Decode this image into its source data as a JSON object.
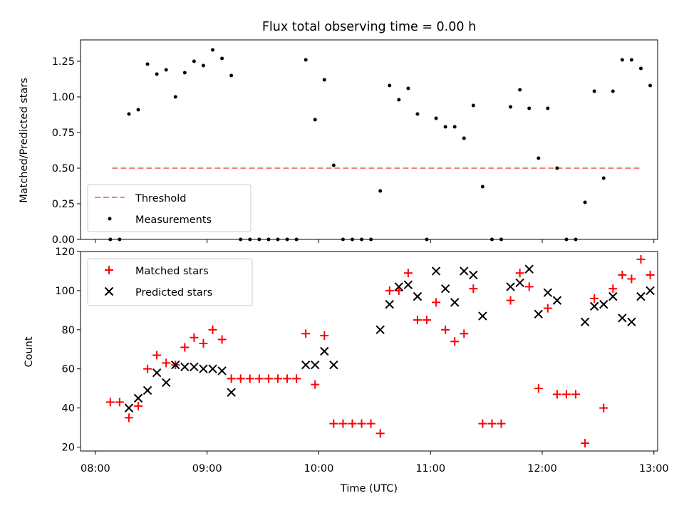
{
  "chart_data": [
    {
      "type": "scatter",
      "title": "Flux total observing time = 0.00 h",
      "ylabel": "Matched/Predicted stars",
      "xlabel": "",
      "ylim": [
        0,
        1.4
      ],
      "xlim": [
        "07:52",
        "13:02"
      ],
      "yticks": [
        "0.00",
        "0.25",
        "0.50",
        "0.75",
        "1.00",
        "1.25"
      ],
      "legend_position": "lower-left",
      "threshold": {
        "name": "Threshold",
        "y": 0.5,
        "x_start": "08:09",
        "x_end": "12:53",
        "color": "#f08080"
      },
      "series": [
        {
          "name": "Measurements",
          "color": "#000000",
          "points": [
            [
              "08:08",
              0.0
            ],
            [
              "08:13",
              0.0
            ],
            [
              "08:18",
              0.88
            ],
            [
              "08:23",
              0.91
            ],
            [
              "08:28",
              1.23
            ],
            [
              "08:33",
              1.16
            ],
            [
              "08:38",
              1.19
            ],
            [
              "08:43",
              1.0
            ],
            [
              "08:48",
              1.17
            ],
            [
              "08:53",
              1.25
            ],
            [
              "08:58",
              1.22
            ],
            [
              "09:03",
              1.33
            ],
            [
              "09:08",
              1.27
            ],
            [
              "09:13",
              1.15
            ],
            [
              "09:18",
              0.0
            ],
            [
              "09:23",
              0.0
            ],
            [
              "09:28",
              0.0
            ],
            [
              "09:33",
              0.0
            ],
            [
              "09:38",
              0.0
            ],
            [
              "09:43",
              0.0
            ],
            [
              "09:48",
              0.0
            ],
            [
              "09:53",
              1.26
            ],
            [
              "09:58",
              0.84
            ],
            [
              "10:03",
              1.12
            ],
            [
              "10:08",
              0.52
            ],
            [
              "10:13",
              0.0
            ],
            [
              "10:18",
              0.0
            ],
            [
              "10:23",
              0.0
            ],
            [
              "10:28",
              0.0
            ],
            [
              "10:33",
              0.34
            ],
            [
              "10:38",
              1.08
            ],
            [
              "10:43",
              0.98
            ],
            [
              "10:48",
              1.06
            ],
            [
              "10:53",
              0.88
            ],
            [
              "10:58",
              0.0
            ],
            [
              "11:03",
              0.85
            ],
            [
              "11:08",
              0.79
            ],
            [
              "11:13",
              0.79
            ],
            [
              "11:18",
              0.71
            ],
            [
              "11:23",
              0.94
            ],
            [
              "11:28",
              0.37
            ],
            [
              "11:33",
              0.0
            ],
            [
              "11:38",
              0.0
            ],
            [
              "11:43",
              0.93
            ],
            [
              "11:48",
              1.05
            ],
            [
              "11:53",
              0.92
            ],
            [
              "11:58",
              0.57
            ],
            [
              "12:03",
              0.92
            ],
            [
              "12:08",
              0.5
            ],
            [
              "12:13",
              0.0
            ],
            [
              "12:18",
              0.0
            ],
            [
              "12:23",
              0.26
            ],
            [
              "12:28",
              1.04
            ],
            [
              "12:33",
              0.43
            ],
            [
              "12:38",
              1.04
            ],
            [
              "12:43",
              1.26
            ],
            [
              "12:48",
              1.26
            ],
            [
              "12:53",
              1.2
            ],
            [
              "12:58",
              1.08
            ]
          ]
        }
      ]
    },
    {
      "type": "scatter",
      "title": "",
      "ylabel": "Count",
      "xlabel": "Time (UTC)",
      "ylim": [
        18,
        120
      ],
      "xlim": [
        "07:52",
        "13:02"
      ],
      "xticks": [
        "08:00",
        "09:00",
        "10:00",
        "11:00",
        "12:00",
        "13:00"
      ],
      "yticks": [
        "20",
        "40",
        "60",
        "80",
        "100",
        "120"
      ],
      "legend_position": "upper-left",
      "series": [
        {
          "name": "Matched stars",
          "color": "#ff0000",
          "marker": "plus",
          "points": [
            [
              "08:08",
              43
            ],
            [
              "08:13",
              43
            ],
            [
              "08:18",
              35
            ],
            [
              "08:23",
              41
            ],
            [
              "08:28",
              60
            ],
            [
              "08:33",
              67
            ],
            [
              "08:38",
              63
            ],
            [
              "08:43",
              62
            ],
            [
              "08:48",
              71
            ],
            [
              "08:53",
              76
            ],
            [
              "08:58",
              73
            ],
            [
              "09:03",
              80
            ],
            [
              "09:08",
              75
            ],
            [
              "09:13",
              55
            ],
            [
              "09:18",
              55
            ],
            [
              "09:23",
              55
            ],
            [
              "09:28",
              55
            ],
            [
              "09:33",
              55
            ],
            [
              "09:38",
              55
            ],
            [
              "09:43",
              55
            ],
            [
              "09:48",
              55
            ],
            [
              "09:53",
              78
            ],
            [
              "09:58",
              52
            ],
            [
              "10:03",
              77
            ],
            [
              "10:08",
              32
            ],
            [
              "10:13",
              32
            ],
            [
              "10:18",
              32
            ],
            [
              "10:23",
              32
            ],
            [
              "10:28",
              32
            ],
            [
              "10:33",
              27
            ],
            [
              "10:38",
              100
            ],
            [
              "10:43",
              100
            ],
            [
              "10:48",
              109
            ],
            [
              "10:53",
              85
            ],
            [
              "10:58",
              85
            ],
            [
              "11:03",
              94
            ],
            [
              "11:08",
              80
            ],
            [
              "11:13",
              74
            ],
            [
              "11:18",
              78
            ],
            [
              "11:23",
              101
            ],
            [
              "11:28",
              32
            ],
            [
              "11:33",
              32
            ],
            [
              "11:38",
              32
            ],
            [
              "11:43",
              95
            ],
            [
              "11:48",
              109
            ],
            [
              "11:53",
              102
            ],
            [
              "11:58",
              50
            ],
            [
              "12:03",
              91
            ],
            [
              "12:08",
              47
            ],
            [
              "12:13",
              47
            ],
            [
              "12:18",
              47
            ],
            [
              "12:23",
              22
            ],
            [
              "12:28",
              96
            ],
            [
              "12:33",
              40
            ],
            [
              "12:38",
              101
            ],
            [
              "12:43",
              108
            ],
            [
              "12:48",
              106
            ],
            [
              "12:53",
              116
            ],
            [
              "12:58",
              108
            ]
          ]
        },
        {
          "name": "Predicted stars",
          "color": "#000000",
          "marker": "x",
          "points": [
            [
              "08:18",
              40
            ],
            [
              "08:23",
              45
            ],
            [
              "08:28",
              49
            ],
            [
              "08:33",
              58
            ],
            [
              "08:38",
              53
            ],
            [
              "08:43",
              62
            ],
            [
              "08:48",
              61
            ],
            [
              "08:53",
              61
            ],
            [
              "08:58",
              60
            ],
            [
              "09:03",
              60
            ],
            [
              "09:08",
              59
            ],
            [
              "09:13",
              48
            ],
            [
              "09:53",
              62
            ],
            [
              "09:58",
              62
            ],
            [
              "10:03",
              69
            ],
            [
              "10:08",
              62
            ],
            [
              "10:33",
              80
            ],
            [
              "10:38",
              93
            ],
            [
              "10:43",
              102
            ],
            [
              "10:48",
              103
            ],
            [
              "10:53",
              97
            ],
            [
              "11:03",
              110
            ],
            [
              "11:08",
              101
            ],
            [
              "11:13",
              94
            ],
            [
              "11:18",
              110
            ],
            [
              "11:23",
              108
            ],
            [
              "11:28",
              87
            ],
            [
              "11:43",
              102
            ],
            [
              "11:48",
              104
            ],
            [
              "11:53",
              111
            ],
            [
              "11:58",
              88
            ],
            [
              "12:03",
              99
            ],
            [
              "12:08",
              95
            ],
            [
              "12:23",
              84
            ],
            [
              "12:28",
              92
            ],
            [
              "12:33",
              93
            ],
            [
              "12:38",
              97
            ],
            [
              "12:43",
              86
            ],
            [
              "12:48",
              84
            ],
            [
              "12:53",
              97
            ],
            [
              "12:58",
              100
            ]
          ]
        }
      ]
    }
  ]
}
